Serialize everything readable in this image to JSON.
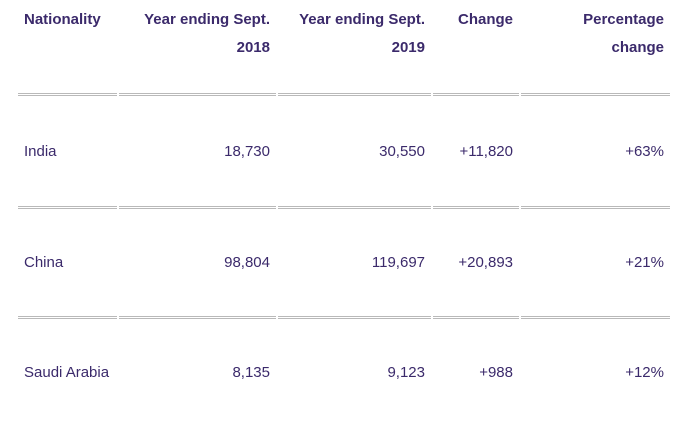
{
  "table": {
    "headers": [
      {
        "line1": "Nationality",
        "line2": ""
      },
      {
        "line1": "Year ending Sept.",
        "line2": "2018"
      },
      {
        "line1": "Year ending Sept.",
        "line2": "2019"
      },
      {
        "line1": "Change",
        "line2": ""
      },
      {
        "line1": "Percentage",
        "line2": "change"
      }
    ],
    "rows": [
      {
        "nationality": "India",
        "y2018": "18,730",
        "y2019": "30,550",
        "change": "+11,820",
        "pct": "+63%"
      },
      {
        "nationality": "China",
        "y2018": "98,804",
        "y2019": "119,697",
        "change": "+20,893",
        "pct": "+21%"
      },
      {
        "nationality": "Saudi Arabia",
        "y2018": "8,135",
        "y2019": "9,123",
        "change": "+988",
        "pct": "+12%"
      }
    ]
  },
  "colors": {
    "text": "#3b2a6b",
    "rule": "#b9b9b9"
  }
}
